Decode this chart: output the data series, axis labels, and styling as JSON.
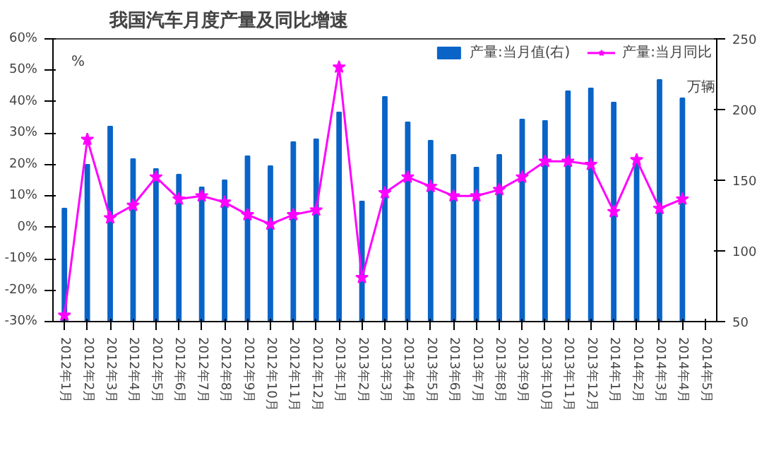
{
  "chart_data": {
    "type": "bar",
    "title": "我国汽车月度产量及同比增速",
    "ylabel": "%",
    "y2label": "万辆",
    "categories": [
      "2012年1月",
      "2012年2月",
      "2012年3月",
      "2012年4月",
      "2012年5月",
      "2012年6月",
      "2012年7月",
      "2012年8月",
      "2012年9月",
      "2012年10月",
      "2012年11月",
      "2012年12月",
      "2013年1月",
      "2013年2月",
      "2013年3月",
      "2013年4月",
      "2013年5月",
      "2013年6月",
      "2013年7月",
      "2013年8月",
      "2013年9月",
      "2013年10月",
      "2013年11月",
      "2013年12月",
      "2014年1月",
      "2014年2月",
      "2014年3月",
      "2014年4月",
      "2014年5月"
    ],
    "series": [
      {
        "name": "产量:当月值(右)",
        "type": "bar",
        "axis": "y2",
        "color": "#0a64c8",
        "values": [
          130,
          161,
          188,
          165,
          158,
          154,
          145,
          150,
          167,
          160,
          177,
          179,
          198,
          135,
          209,
          191,
          178,
          168,
          159,
          168,
          193,
          192,
          213,
          215,
          205,
          164,
          221,
          208,
          null
        ]
      },
      {
        "name": "产量:当月同比",
        "type": "line",
        "axis": "y",
        "color": "#ff00ff",
        "marker": "star",
        "values": [
          -28,
          28,
          3,
          7,
          16,
          9,
          10,
          8,
          4,
          1,
          4,
          5.5,
          51,
          -16,
          11,
          16,
          13,
          10,
          10,
          12,
          16,
          21,
          21,
          20,
          5,
          21.5,
          6,
          9,
          null
        ]
      }
    ],
    "ylim": [
      -30,
      60
    ],
    "yticks": [
      {
        "value": -30,
        "label": "-30%"
      },
      {
        "value": -20,
        "label": "-20%"
      },
      {
        "value": -10,
        "label": "-10%"
      },
      {
        "value": 0,
        "label": "0%"
      },
      {
        "value": 10,
        "label": "10%"
      },
      {
        "value": 20,
        "label": "20%"
      },
      {
        "value": 30,
        "label": "30%"
      },
      {
        "value": 40,
        "label": "40%"
      },
      {
        "value": 50,
        "label": "50%"
      },
      {
        "value": 60,
        "label": "60%"
      }
    ],
    "y2lim": [
      50,
      250
    ],
    "y2ticks": [
      50,
      100,
      150,
      200,
      250
    ],
    "grid": false,
    "legend": "top right"
  }
}
